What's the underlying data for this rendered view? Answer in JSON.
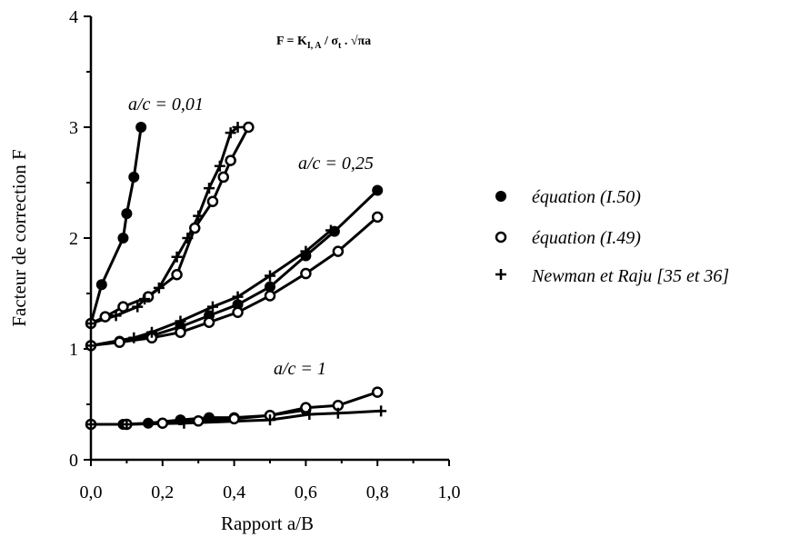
{
  "chart_data": {
    "type": "line",
    "xlabel": "Rapport a/B",
    "ylabel": "Facteur de correction F",
    "xlim": [
      0,
      1.0
    ],
    "ylim": [
      0,
      4
    ],
    "x_ticks": [
      "0,0",
      "0,2",
      "0,4",
      "0,6",
      "0,8",
      "1,0"
    ],
    "y_ticks": [
      "0",
      "1",
      "2",
      "3",
      "4"
    ],
    "formula": "F = K",
    "formula_sub1": "I, A",
    "formula_mid": " / σ",
    "formula_sub2": "t",
    "formula_end": " . √πa",
    "annotations": [
      "a/c = 0,01",
      "a/c = 0,25",
      "a/c = 1"
    ],
    "legend": [
      {
        "marker": "filled-circle",
        "label": "équation (I.50)"
      },
      {
        "marker": "open-circle",
        "label": "équation (I.49)"
      },
      {
        "marker": "plus",
        "label": "Newman et Raju [35 et 36]"
      }
    ],
    "series": [
      {
        "group": "a/c = 0,01",
        "marker": "filled-circle",
        "x": [
          0,
          0.03,
          0.09,
          0.1,
          0.12,
          0.14
        ],
        "y": [
          1.23,
          1.58,
          2.0,
          2.22,
          2.55,
          3.0
        ]
      },
      {
        "group": "a/c = 0,01",
        "marker": "open-circle",
        "x": [
          0,
          0.04,
          0.09,
          0.16,
          0.24,
          0.29,
          0.34,
          0.37,
          0.39,
          0.44
        ],
        "y": [
          1.23,
          1.29,
          1.38,
          1.47,
          1.67,
          2.09,
          2.33,
          2.55,
          2.7,
          3.0
        ]
      },
      {
        "group": "a/c = 0,01",
        "marker": "plus",
        "x": [
          0,
          0.07,
          0.13,
          0.15,
          0.19,
          0.24,
          0.27,
          0.3,
          0.33,
          0.36,
          0.39,
          0.41
        ],
        "y": [
          1.23,
          1.3,
          1.38,
          1.45,
          1.55,
          1.83,
          2.0,
          2.2,
          2.45,
          2.65,
          2.95,
          3.0
        ]
      },
      {
        "group": "a/c = 0,25",
        "marker": "filled-circle",
        "x": [
          0,
          0.08,
          0.17,
          0.25,
          0.33,
          0.41,
          0.5,
          0.6,
          0.68,
          0.8
        ],
        "y": [
          1.03,
          1.07,
          1.12,
          1.2,
          1.3,
          1.4,
          1.56,
          1.84,
          2.06,
          2.43
        ]
      },
      {
        "group": "a/c = 0,25",
        "marker": "open-circle",
        "x": [
          0,
          0.08,
          0.17,
          0.25,
          0.33,
          0.41,
          0.5,
          0.6,
          0.69,
          0.8
        ],
        "y": [
          1.03,
          1.06,
          1.1,
          1.15,
          1.24,
          1.33,
          1.48,
          1.68,
          1.88,
          2.19
        ]
      },
      {
        "group": "a/c = 0,25",
        "marker": "plus",
        "x": [
          0,
          0.12,
          0.17,
          0.25,
          0.34,
          0.41,
          0.5,
          0.6,
          0.67
        ],
        "y": [
          1.03,
          1.1,
          1.15,
          1.25,
          1.38,
          1.47,
          1.66,
          1.88,
          2.07
        ]
      },
      {
        "group": "a/c = 1",
        "marker": "filled-circle",
        "x": [
          0,
          0.09,
          0.16,
          0.25,
          0.33,
          0.4,
          0.5,
          0.6
        ],
        "y": [
          0.32,
          0.32,
          0.33,
          0.36,
          0.38,
          0.38,
          0.4,
          0.45
        ]
      },
      {
        "group": "a/c = 1",
        "marker": "open-circle",
        "x": [
          0,
          0.1,
          0.2,
          0.3,
          0.4,
          0.5,
          0.6,
          0.69,
          0.8
        ],
        "y": [
          0.32,
          0.32,
          0.33,
          0.35,
          0.37,
          0.4,
          0.47,
          0.49,
          0.61
        ]
      },
      {
        "group": "a/c = 1",
        "marker": "plus",
        "x": [
          0,
          0.1,
          0.26,
          0.5,
          0.61,
          0.69,
          0.81
        ],
        "y": [
          0.32,
          0.32,
          0.33,
          0.36,
          0.41,
          0.42,
          0.44
        ]
      }
    ]
  }
}
